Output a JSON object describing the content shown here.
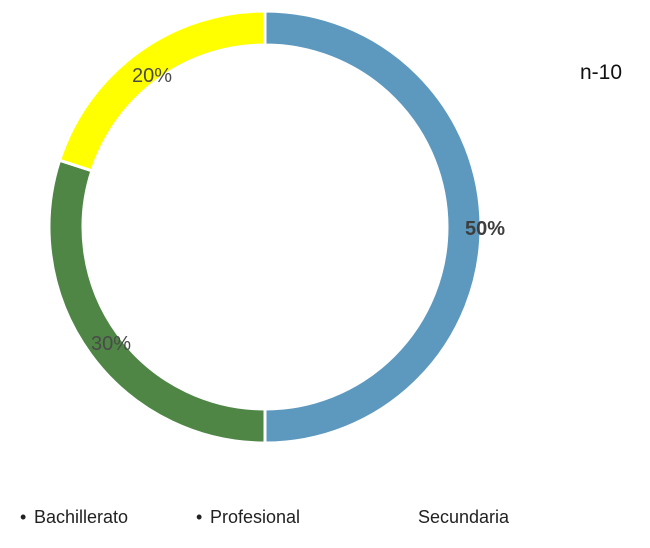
{
  "chart_data": {
    "type": "pie",
    "subtype": "donut",
    "annotation": "n-10",
    "series": [
      {
        "name": "Bachillerato",
        "value": 20,
        "label": "20%",
        "color": "#ffff00",
        "show_legend_bullet": true
      },
      {
        "name": "Profesional",
        "value": 50,
        "label": "50%",
        "color": "#5d99bf",
        "show_legend_bullet": true
      },
      {
        "name": "Secundaria",
        "value": 30,
        "label": "30%",
        "color": "#4f8646",
        "show_legend_bullet": false
      }
    ],
    "legend_position": "bottom",
    "start_angle_degrees": 0,
    "direction": "clockwise",
    "order": [
      "Profesional",
      "Secundaria",
      "Bachillerato"
    ]
  }
}
